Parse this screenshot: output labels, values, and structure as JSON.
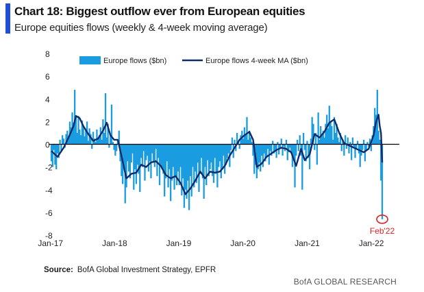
{
  "title": "Chart 18: Biggest outflow ever from European equities",
  "subtitle": "Europe equities flows (weekly & 4-week moving average)",
  "source_label": "Source:",
  "source_text": "BofA Global Investment Strategy, EPFR",
  "footer": "BofA GLOBAL RESEARCH",
  "annotation": "Feb'22",
  "colors": {
    "accent": "#1f4fd6",
    "bars": "#1b9ce0",
    "ma_line": "#0d2a6b",
    "annotation": "#e02020",
    "zero_line": "#000000"
  },
  "chart_data": {
    "type": "bar",
    "title": "Chart 18: Biggest outflow ever from European equities",
    "subtitle": "Europe equities flows (weekly & 4-week moving average)",
    "x_ticks": [
      "Jan-17",
      "Jan-18",
      "Jan-19",
      "Jan-20",
      "Jan-21",
      "Jan-22"
    ],
    "y_ticks": [
      "8",
      "6",
      "4",
      "2",
      "0",
      "-2",
      "-4",
      "-6",
      "-8"
    ],
    "ylim": [
      -8,
      8
    ],
    "grid": false,
    "legend_position": "top",
    "x_start": "2017-01-06",
    "x_end": "2022-03-04",
    "series": [
      {
        "name": "Europe flows ($bn)",
        "kind": "bar",
        "segments": [
          {
            "from": "2017-01-06",
            "to": "2017-03-31",
            "values": [
              -1.5,
              -2.0,
              -0.5,
              -1.8,
              -2.2,
              -0.8,
              -1.2,
              0.4,
              -0.6,
              0.8,
              0.5,
              -0.3,
              0.9
            ]
          },
          {
            "from": "2017-04-07",
            "to": "2017-06-30",
            "values": [
              1.2,
              0.6,
              2.0,
              1.5,
              2.8,
              1.9,
              4.8,
              2.4,
              1.0,
              2.5,
              1.3,
              0.8,
              2.1
            ]
          },
          {
            "from": "2017-07-07",
            "to": "2017-09-29",
            "values": [
              1.6,
              0.7,
              1.2,
              2.0,
              0.3,
              1.4,
              0.9,
              -0.4,
              1.1,
              0.5,
              0.2,
              1.3,
              0.6
            ]
          },
          {
            "from": "2017-10-06",
            "to": "2017-12-29",
            "values": [
              0.8,
              1.5,
              0.4,
              2.2,
              1.0,
              4.5,
              0.6,
              1.8,
              -0.3,
              0.9,
              3.5,
              0.2,
              -0.5
            ]
          },
          {
            "from": "2018-01-05",
            "to": "2018-03-30",
            "values": [
              -1.0,
              -0.6,
              0.4,
              1.2,
              -1.5,
              -2.8,
              -3.5,
              -2.0,
              -5.2,
              -3.8,
              -1.5,
              -2.4,
              -3.0
            ]
          },
          {
            "from": "2018-04-06",
            "to": "2018-06-29",
            "values": [
              -1.6,
              -0.8,
              -4.0,
              -2.2,
              -3.5,
              -1.8,
              -2.6,
              -4.2,
              -1.2,
              -2.0,
              -0.6,
              -3.2,
              -1.4
            ]
          },
          {
            "from": "2018-07-06",
            "to": "2018-09-28",
            "values": [
              -1.0,
              -2.4,
              -1.5,
              -3.0,
              -0.8,
              -1.6,
              -2.0,
              -0.4,
              -2.8,
              -1.2,
              -3.6,
              -1.8,
              -2.2
            ]
          },
          {
            "from": "2018-10-05",
            "to": "2018-12-28",
            "values": [
              -2.6,
              -4.6,
              -3.0,
              -1.5,
              -3.8,
              -2.2,
              -5.0,
              -3.2,
              -2.0,
              -4.0,
              -2.8,
              -3.6,
              -2.4
            ]
          },
          {
            "from": "2019-01-04",
            "to": "2019-03-29",
            "values": [
              -3.6,
              -2.0,
              -4.5,
              -3.0,
              -5.6,
              -4.0,
              -4.8,
              -3.2,
              -5.8,
              -2.8,
              -4.6,
              -2.0,
              -3.8
            ]
          },
          {
            "from": "2019-04-05",
            "to": "2019-06-28",
            "values": [
              -2.4,
              -3.4,
              -1.6,
              -4.2,
              -2.6,
              -1.2,
              -3.0,
              -4.8,
              -2.0,
              -3.6,
              -1.4,
              -2.8,
              -2.2
            ]
          },
          {
            "from": "2019-07-05",
            "to": "2019-09-27",
            "values": [
              -1.6,
              -2.8,
              -3.4,
              -1.2,
              -2.6,
              -3.8,
              -2.0,
              -1.5,
              -3.0,
              -2.2,
              -1.0,
              -2.6,
              -1.8
            ]
          },
          {
            "from": "2019-10-04",
            "to": "2019-12-27",
            "values": [
              -1.2,
              -0.8,
              -2.0,
              -0.5,
              0.6,
              -1.2,
              0.4,
              -0.6,
              1.0,
              0.3,
              -0.4,
              0.8,
              1.2
            ]
          },
          {
            "from": "2020-01-03",
            "to": "2020-03-27",
            "values": [
              0.5,
              1.5,
              0.8,
              2.4,
              0.4,
              1.2,
              0.6,
              0.2,
              -1.0,
              -2.6,
              -1.8,
              -3.0,
              -2.2
            ]
          },
          {
            "from": "2020-04-03",
            "to": "2020-06-26",
            "values": [
              -1.6,
              -2.4,
              -1.0,
              -2.0,
              -0.8,
              -1.5,
              -1.2,
              -0.4,
              -1.8,
              -0.6,
              -1.0,
              0.3,
              -0.8
            ]
          },
          {
            "from": "2020-07-03",
            "to": "2020-09-25",
            "values": [
              -0.5,
              -1.2,
              0.2,
              -0.9,
              -0.3,
              0.5,
              -1.0,
              -0.2,
              -0.6,
              0.4,
              -1.4,
              -0.7,
              -0.3
            ]
          },
          {
            "from": "2020-10-02",
            "to": "2020-12-25",
            "values": [
              -0.8,
              -2.0,
              -1.2,
              -3.8,
              -1.0,
              0.4,
              -0.6,
              0.8,
              -1.0,
              -4.0,
              1.0,
              -0.5,
              -1.5
            ]
          },
          {
            "from": "2021-01-01",
            "to": "2021-03-26",
            "values": [
              0.3,
              -1.2,
              -2.2,
              0.5,
              2.4,
              1.8,
              -0.5,
              1.0,
              -1.8,
              2.8,
              0.4,
              1.6,
              0.8
            ]
          },
          {
            "from": "2021-04-02",
            "to": "2021-06-25",
            "values": [
              1.2,
              0.6,
              1.8,
              2.6,
              1.4,
              3.4,
              2.0,
              1.6,
              0.4,
              2.4,
              1.0,
              1.8,
              0.6
            ]
          },
          {
            "from": "2021-07-02",
            "to": "2021-09-24",
            "values": [
              0.2,
              1.0,
              -0.6,
              0.4,
              -1.0,
              0.8,
              -0.4,
              0.6,
              -0.8,
              0.2,
              -1.4,
              0.6,
              -0.2
            ]
          },
          {
            "from": "2021-10-01",
            "to": "2021-12-24",
            "values": [
              -1.2,
              -0.4,
              0.3,
              -0.8,
              -2.0,
              -1.0,
              -0.5,
              0.4,
              -1.5,
              -0.6,
              0.2,
              -0.2,
              0.5
            ]
          },
          {
            "from": "2021-12-31",
            "to": "2022-03-04",
            "values": [
              -0.6,
              0.8,
              1.6,
              3.2,
              2.6,
              4.8,
              1.2,
              0.4,
              -3.2,
              -6.6
            ]
          }
        ]
      },
      {
        "name": "Europe flows 4-week MA ($bn)",
        "kind": "line",
        "points": [
          [
            "2017-01-06",
            -0.6
          ],
          [
            "2017-02-10",
            -1.1
          ],
          [
            "2017-03-17",
            -0.3
          ],
          [
            "2017-04-14",
            0.6
          ],
          [
            "2017-05-12",
            1.6
          ],
          [
            "2017-05-26",
            2.5
          ],
          [
            "2017-06-16",
            2.3
          ],
          [
            "2017-07-07",
            1.6
          ],
          [
            "2017-08-04",
            0.9
          ],
          [
            "2017-09-01",
            0.3
          ],
          [
            "2017-09-29",
            0.5
          ],
          [
            "2017-10-27",
            1.2
          ],
          [
            "2017-11-17",
            1.9
          ],
          [
            "2017-12-08",
            0.8
          ],
          [
            "2017-12-29",
            0.4
          ],
          [
            "2018-01-19",
            0.4
          ],
          [
            "2018-02-16",
            -1.5
          ],
          [
            "2018-03-09",
            -3.0
          ],
          [
            "2018-04-06",
            -2.6
          ],
          [
            "2018-05-04",
            -2.5
          ],
          [
            "2018-06-01",
            -1.8
          ],
          [
            "2018-06-29",
            -2.0
          ],
          [
            "2018-07-27",
            -1.6
          ],
          [
            "2018-08-24",
            -1.5
          ],
          [
            "2018-09-21",
            -1.9
          ],
          [
            "2018-10-19",
            -2.7
          ],
          [
            "2018-11-16",
            -3.0
          ],
          [
            "2018-12-14",
            -2.8
          ],
          [
            "2019-01-11",
            -3.4
          ],
          [
            "2019-02-08",
            -4.4
          ],
          [
            "2019-03-08",
            -3.9
          ],
          [
            "2019-04-05",
            -3.2
          ],
          [
            "2019-05-03",
            -2.4
          ],
          [
            "2019-05-31",
            -3.0
          ],
          [
            "2019-06-28",
            -2.4
          ],
          [
            "2019-07-26",
            -2.5
          ],
          [
            "2019-08-23",
            -2.4
          ],
          [
            "2019-09-20",
            -1.9
          ],
          [
            "2019-10-18",
            -1.0
          ],
          [
            "2019-11-15",
            -0.3
          ],
          [
            "2019-12-13",
            0.4
          ],
          [
            "2020-01-10",
            0.8
          ],
          [
            "2020-02-07",
            1.1
          ],
          [
            "2020-02-28",
            0.4
          ],
          [
            "2020-03-20",
            -2.0
          ],
          [
            "2020-04-17",
            -1.7
          ],
          [
            "2020-05-15",
            -1.1
          ],
          [
            "2020-06-12",
            -0.8
          ],
          [
            "2020-07-10",
            -0.5
          ],
          [
            "2020-08-07",
            -0.3
          ],
          [
            "2020-09-04",
            -0.4
          ],
          [
            "2020-10-02",
            -0.7
          ],
          [
            "2020-10-30",
            -1.9
          ],
          [
            "2020-11-27",
            -0.4
          ],
          [
            "2020-12-18",
            -1.4
          ],
          [
            "2021-01-15",
            -0.9
          ],
          [
            "2021-02-12",
            0.9
          ],
          [
            "2021-03-12",
            0.6
          ],
          [
            "2021-04-09",
            1.1
          ],
          [
            "2021-05-07",
            1.9
          ],
          [
            "2021-06-04",
            2.2
          ],
          [
            "2021-07-02",
            1.0
          ],
          [
            "2021-07-30",
            0.1
          ],
          [
            "2021-08-27",
            -0.1
          ],
          [
            "2021-09-24",
            -0.3
          ],
          [
            "2021-10-22",
            -0.5
          ],
          [
            "2021-11-19",
            -0.7
          ],
          [
            "2021-12-17",
            -0.4
          ],
          [
            "2022-01-14",
            0.8
          ],
          [
            "2022-01-28",
            2.0
          ],
          [
            "2022-02-11",
            2.6
          ],
          [
            "2022-02-18",
            1.6
          ],
          [
            "2022-02-25",
            1.0
          ],
          [
            "2022-03-04",
            -1.6
          ]
        ]
      }
    ],
    "annotations": [
      {
        "text": "Feb'22",
        "x": "2022-03-04",
        "y": -6.6
      }
    ]
  }
}
